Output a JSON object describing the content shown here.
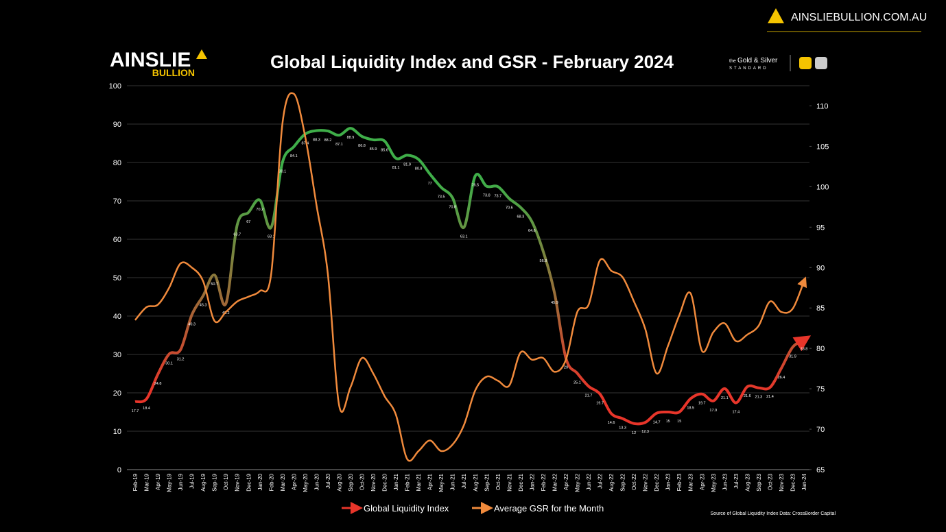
{
  "header": {
    "site": "AINSLIEBULLION.COM.AU",
    "logo_top": "AINSLIE",
    "logo_bottom": "BULLION",
    "partner_small": "the",
    "partner_name": "Gold & Silver",
    "partner_sub": "STANDARD",
    "source": "Source of Global Liquidity Index Data: CrossBorder Capital"
  },
  "chart_data": {
    "type": "line",
    "title": "Global Liquidity Index and GSR - February 2024",
    "categories": [
      "Feb-19",
      "Mar-19",
      "Apr-19",
      "May-19",
      "Jun-19",
      "Jul-19",
      "Aug-19",
      "Sep-19",
      "Oct-19",
      "Nov-19",
      "Dec-19",
      "Jan-20",
      "Feb-20",
      "Mar-20",
      "Apr-20",
      "May-20",
      "Jun-20",
      "Jul-20",
      "Aug-20",
      "Sep-20",
      "Oct-20",
      "Nov-20",
      "Dec-20",
      "Jan-21",
      "Feb-21",
      "Mar-21",
      "Apr-21",
      "May-21",
      "Jun-21",
      "Jul-21",
      "Aug-21",
      "Sep-21",
      "Oct-21",
      "Nov-21",
      "Dec-21",
      "Jan-22",
      "Feb-22",
      "Mar-22",
      "Apr-22",
      "May-22",
      "Jun-22",
      "Jul-22",
      "Aug-22",
      "Sep-22",
      "Oct-22",
      "Nov-22",
      "Dec-22",
      "Jan-23",
      "Feb-23",
      "Mar-23",
      "Apr-23",
      "May-23",
      "Jun-23",
      "Jul-23",
      "Aug-23",
      "Sep-23",
      "Oct-23",
      "Nov-23",
      "Dec-23",
      "Jan-24"
    ],
    "series": [
      {
        "name": "Global Liquidity Index",
        "color": "#3fae49",
        "gradient": [
          "#e8352a",
          "#3fae49"
        ],
        "axis": "y",
        "values": [
          17.7,
          18.4,
          24.8,
          30.1,
          31.2,
          40.3,
          45.3,
          50.7,
          43.2,
          63.7,
          67,
          70.2,
          63.1,
          80.1,
          84.1,
          87.4,
          88.3,
          88.2,
          87.1,
          88.9,
          86.8,
          85.9,
          85.6,
          81.1,
          81.9,
          80.8,
          77,
          73.5,
          70.8,
          63.1,
          76.5,
          73.8,
          73.7,
          70.6,
          68.3,
          64.6,
          56.8,
          45.9,
          29,
          25.1,
          21.7,
          19.7,
          14.6,
          13.3,
          12,
          12.3,
          14.7,
          15,
          15,
          18.5,
          19.7,
          17.9,
          21.1,
          17.4,
          21.6,
          21.3,
          21.4,
          26.4,
          31.9,
          33.8
        ]
      },
      {
        "name": "Average GSR for the Month",
        "color": "#f08a3c",
        "axis": "y2",
        "values": [
          83.5,
          85.1,
          85.4,
          87.5,
          90.5,
          90.0,
          88.3,
          83.4,
          84.5,
          85.8,
          86.4,
          87.1,
          89.2,
          107.9,
          111.5,
          106.2,
          97.7,
          89.2,
          72.9,
          75.2,
          78.8,
          76.9,
          74.1,
          71.8,
          66.3,
          67.3,
          68.6,
          67.3,
          68.1,
          70.5,
          74.8,
          76.5,
          76.0,
          75.4,
          79.5,
          78.6,
          78.8,
          77.1,
          78.6,
          84.5,
          85.4,
          90.9,
          89.6,
          88.8,
          85.8,
          82.4,
          76.9,
          80.3,
          84.1,
          86.8,
          79.7,
          82.0,
          83.1,
          80.9,
          81.7,
          82.8,
          85.8,
          84.5,
          84.9,
          88.3
        ]
      }
    ],
    "ylim": [
      0,
      100
    ],
    "yticks": [
      0,
      10,
      20,
      30,
      40,
      50,
      60,
      70,
      80,
      90,
      100
    ],
    "y2lim": [
      65,
      112.5
    ],
    "y2ticks": [
      65,
      70,
      75,
      80,
      85,
      90,
      95,
      100,
      105,
      110
    ],
    "grid": true
  }
}
